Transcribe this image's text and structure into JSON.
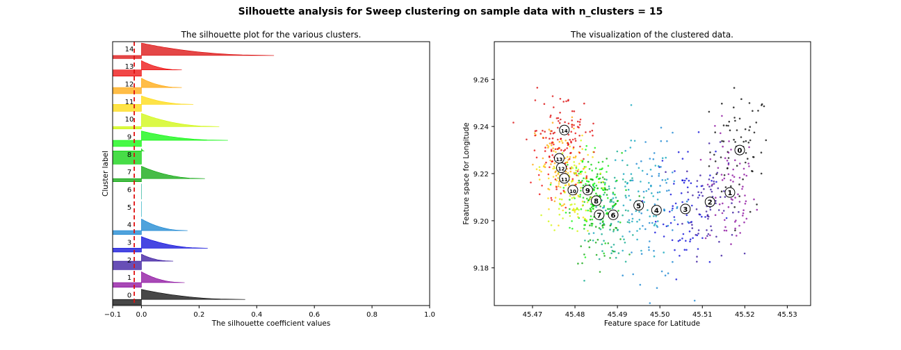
{
  "suptitle": "Silhouette analysis for Sweep clustering on sample data with n_clusters = 15",
  "chart_data": [
    {
      "type": "area",
      "title": "The silhouette plot for the various clusters.",
      "xlabel": "The silhouette coefficient values",
      "ylabel": "Cluster label",
      "xlim": [
        -0.1,
        1.0
      ],
      "xticks": [
        -0.1,
        0.0,
        0.2,
        0.4,
        0.6,
        0.8,
        1.0
      ],
      "xtick_labels": [
        "−0.1",
        "0.0",
        "0.2",
        "0.4",
        "0.6",
        "0.8",
        "1.0"
      ],
      "average_silhouette_score": -0.025,
      "clusters": [
        {
          "label": "0",
          "color": "#000000",
          "min": -0.1,
          "max": 0.36,
          "neg_share": 0.35
        },
        {
          "label": "1",
          "color": "#86039a",
          "min": -0.1,
          "max": 0.15,
          "neg_share": 0.3
        },
        {
          "label": "2",
          "color": "#2e0b9a",
          "min": -0.1,
          "max": 0.11,
          "neg_share": 0.55
        },
        {
          "label": "3",
          "color": "#0000d7",
          "min": -0.1,
          "max": 0.23,
          "neg_share": 0.25
        },
        {
          "label": "4",
          "color": "#0c7fcf",
          "min": -0.1,
          "max": 0.16,
          "neg_share": 0.25
        },
        {
          "label": "5",
          "color": "#00a0b8",
          "min": 0.0,
          "max": 0.0,
          "neg_share": 1.0
        },
        {
          "label": "6",
          "color": "#00a587",
          "min": 0.0,
          "max": 0.0,
          "neg_share": 1.0
        },
        {
          "label": "7",
          "color": "#00a200",
          "min": -0.1,
          "max": 0.22,
          "neg_share": 0.2
        },
        {
          "label": "8",
          "color": "#00d000",
          "min": -0.1,
          "max": 0.01,
          "neg_share": 0.85
        },
        {
          "label": "9",
          "color": "#00f600",
          "min": -0.1,
          "max": 0.3,
          "neg_share": 0.4
        },
        {
          "label": "10",
          "color": "#cdf700",
          "min": -0.1,
          "max": 0.27,
          "neg_share": 0.15
        },
        {
          "label": "11",
          "color": "#fdd800",
          "min": -0.1,
          "max": 0.18,
          "neg_share": 0.45
        },
        {
          "label": "12",
          "color": "#ffa300",
          "min": -0.1,
          "max": 0.14,
          "neg_share": 0.4
        },
        {
          "label": "13",
          "color": "#ec0000",
          "min": -0.1,
          "max": 0.14,
          "neg_share": 0.4
        },
        {
          "label": "14",
          "color": "#d90000",
          "min": -0.1,
          "max": 0.46,
          "neg_share": 0.2
        }
      ]
    },
    {
      "type": "scatter",
      "title": "The visualization of the clustered data.",
      "xlabel": "Feature space for Latitude",
      "ylabel": "Feature space for Longitude",
      "xlim": [
        45.461,
        45.5355
      ],
      "ylim": [
        9.164,
        9.276
      ],
      "xticks": [
        45.47,
        45.48,
        45.49,
        45.5,
        45.51,
        45.52,
        45.53
      ],
      "xtick_labels": [
        "45.47",
        "45.48",
        "45.49",
        "45.50",
        "45.51",
        "45.52",
        "45.53"
      ],
      "yticks": [
        9.18,
        9.2,
        9.22,
        9.24,
        9.26
      ],
      "ytick_labels": [
        "9.18",
        "9.20",
        "9.22",
        "9.24",
        "9.26"
      ],
      "centers": [
        {
          "label": "0",
          "color": "#000000",
          "x": 45.5188,
          "y": 9.23,
          "sx": 0.0035,
          "sy": 0.013
        },
        {
          "label": "1",
          "color": "#86039a",
          "x": 45.5165,
          "y": 9.212,
          "sx": 0.003,
          "sy": 0.013
        },
        {
          "label": "2",
          "color": "#2e0b9a",
          "x": 45.5118,
          "y": 9.208,
          "sx": 0.003,
          "sy": 0.011
        },
        {
          "label": "3",
          "color": "#0000d7",
          "x": 45.506,
          "y": 9.205,
          "sx": 0.0035,
          "sy": 0.014
        },
        {
          "label": "4",
          "color": "#0c7fcf",
          "x": 45.4992,
          "y": 9.2045,
          "sx": 0.004,
          "sy": 0.015
        },
        {
          "label": "5",
          "color": "#00a0b8",
          "x": 45.495,
          "y": 9.2065,
          "sx": 0.004,
          "sy": 0.013
        },
        {
          "label": "6",
          "color": "#00a587",
          "x": 45.489,
          "y": 9.2025,
          "sx": 0.003,
          "sy": 0.011
        },
        {
          "label": "7",
          "color": "#00a200",
          "x": 45.4857,
          "y": 9.2025,
          "sx": 0.003,
          "sy": 0.01
        },
        {
          "label": "8",
          "color": "#00d000",
          "x": 45.485,
          "y": 9.2085,
          "sx": 0.003,
          "sy": 0.01
        },
        {
          "label": "9",
          "color": "#00f600",
          "x": 45.483,
          "y": 9.213,
          "sx": 0.003,
          "sy": 0.01
        },
        {
          "label": "10",
          "color": "#cdf700",
          "x": 45.4795,
          "y": 9.213,
          "sx": 0.003,
          "sy": 0.009
        },
        {
          "label": "11",
          "color": "#fdd800",
          "x": 45.4775,
          "y": 9.218,
          "sx": 0.003,
          "sy": 0.009
        },
        {
          "label": "12",
          "color": "#ffa300",
          "x": 45.4768,
          "y": 9.2225,
          "sx": 0.003,
          "sy": 0.01
        },
        {
          "label": "13",
          "color": "#ec0000",
          "x": 45.4763,
          "y": 9.2265,
          "sx": 0.003,
          "sy": 0.008
        },
        {
          "label": "14",
          "color": "#d90000",
          "x": 45.4775,
          "y": 9.2385,
          "sx": 0.004,
          "sy": 0.008
        }
      ]
    }
  ]
}
